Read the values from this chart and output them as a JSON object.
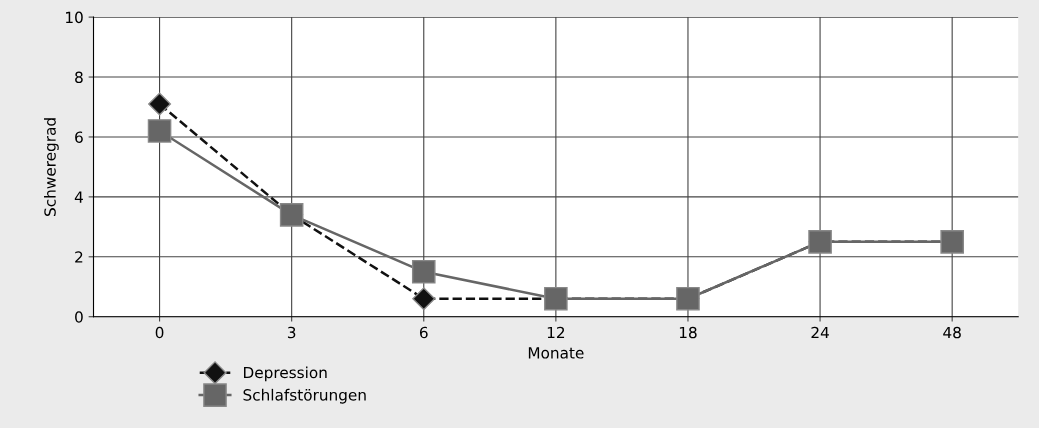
{
  "chart_data": {
    "type": "line",
    "xlabel": "Monate",
    "ylabel": "Schweregrad",
    "categories": [
      "0",
      "3",
      "6",
      "12",
      "18",
      "24",
      "48"
    ],
    "series": [
      {
        "name": "Depression",
        "color": "#111111",
        "values": [
          7.1,
          3.4,
          0.6,
          0.6,
          0.6,
          2.5,
          2.5
        ],
        "marker": "diamond",
        "line_style": "dashed"
      },
      {
        "name": "Schlafstörungen",
        "color": "#666666",
        "values": [
          6.2,
          3.4,
          1.5,
          0.6,
          0.6,
          2.5,
          2.5
        ],
        "marker": "square",
        "line_style": "solid"
      }
    ],
    "ylim": [
      0,
      10
    ],
    "yticks": [
      0,
      2,
      4,
      6,
      8,
      10
    ],
    "grid": true,
    "legend": "bottom left"
  }
}
